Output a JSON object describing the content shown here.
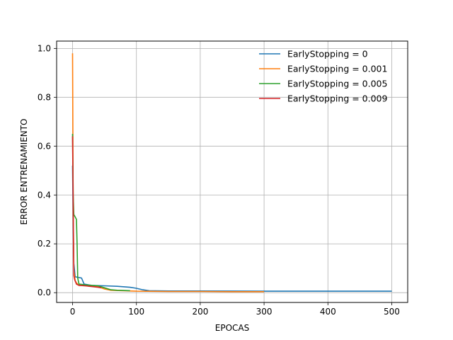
{
  "chart_data": {
    "type": "line",
    "title": "",
    "xlabel": "EPOCAS",
    "ylabel": "ERROR ENTRENAMIENTO",
    "xlim": [
      -25,
      525
    ],
    "ylim": [
      -0.04,
      1.03
    ],
    "xticks": [
      0,
      100,
      200,
      300,
      400,
      500
    ],
    "yticks": [
      0.0,
      0.2,
      0.4,
      0.6,
      0.8,
      1.0
    ],
    "xtick_labels": [
      "0",
      "100",
      "200",
      "300",
      "400",
      "500"
    ],
    "ytick_labels": [
      "0.0",
      "0.2",
      "0.4",
      "0.6",
      "0.8",
      "1.0"
    ],
    "grid": true,
    "legend_position": "top-right",
    "series": [
      {
        "name": "EarlyStopping = 0",
        "color": "#1f77b4",
        "x": [
          0,
          1,
          2,
          4,
          6,
          10,
          14,
          18,
          30,
          50,
          70,
          90,
          100,
          110,
          120,
          150,
          200,
          300,
          400,
          500
        ],
        "y": [
          0.52,
          0.28,
          0.12,
          0.065,
          0.064,
          0.062,
          0.06,
          0.035,
          0.03,
          0.028,
          0.026,
          0.022,
          0.018,
          0.012,
          0.008,
          0.007,
          0.007,
          0.006,
          0.006,
          0.006
        ]
      },
      {
        "name": "EarlyStopping = 0.001",
        "color": "#ff7f0e",
        "x": [
          0,
          1,
          2,
          4,
          6,
          10,
          20,
          30,
          40,
          50,
          60,
          80,
          100,
          150,
          200,
          250,
          300
        ],
        "y": [
          0.98,
          0.35,
          0.09,
          0.05,
          0.04,
          0.03,
          0.028,
          0.026,
          0.024,
          0.015,
          0.01,
          0.008,
          0.006,
          0.005,
          0.005,
          0.004,
          0.004
        ]
      },
      {
        "name": "EarlyStopping = 0.005",
        "color": "#2ca02c",
        "x": [
          0,
          1,
          2,
          4,
          6,
          7,
          8,
          10,
          20,
          30,
          40,
          50,
          60,
          70,
          80,
          90
        ],
        "y": [
          0.65,
          0.4,
          0.32,
          0.31,
          0.3,
          0.2,
          0.06,
          0.035,
          0.032,
          0.03,
          0.028,
          0.02,
          0.012,
          0.01,
          0.009,
          0.008
        ]
      },
      {
        "name": "EarlyStopping = 0.009",
        "color": "#d62728",
        "x": [
          0,
          1,
          2,
          3,
          4,
          6,
          10,
          20,
          30,
          40,
          45
        ],
        "y": [
          0.64,
          0.36,
          0.07,
          0.055,
          0.048,
          0.035,
          0.03,
          0.028,
          0.025,
          0.022,
          0.02
        ]
      }
    ]
  }
}
